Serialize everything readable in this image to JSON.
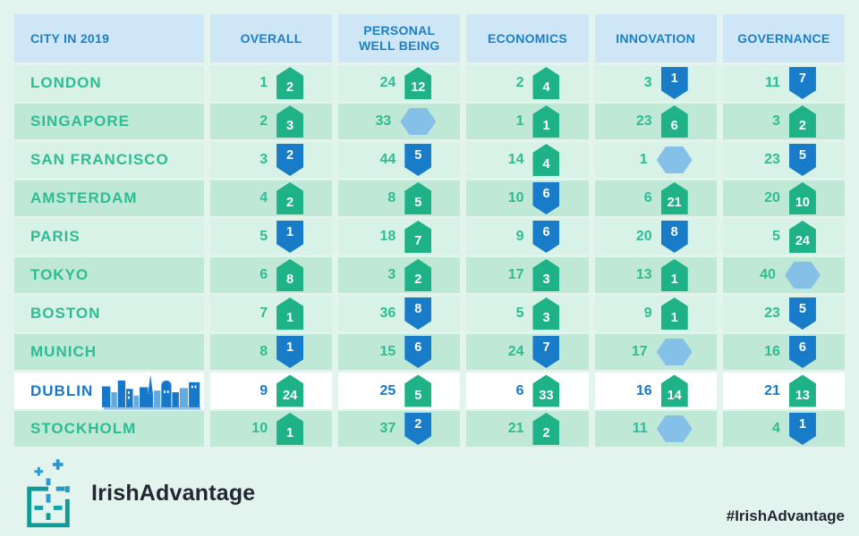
{
  "chart_data": {
    "type": "table",
    "title": "City in 2019 rankings with year-over-year rank change badges",
    "columns": [
      {
        "id": "city",
        "label": "CITY IN 2019"
      },
      {
        "id": "overall",
        "label": "OVERALL"
      },
      {
        "id": "personal-well-being",
        "label": "PERSONAL WELL BEING"
      },
      {
        "id": "economics",
        "label": "ECONOMICS"
      },
      {
        "id": "innovation",
        "label": "INNOVATION"
      },
      {
        "id": "governance",
        "label": "GOVERNANCE"
      }
    ],
    "change_legend": {
      "up": "rank improved (green upward pentagon badge)",
      "down": "rank dropped (blue downward pentagon badge)",
      "none": "no change (light blue hexagon badge, no number)"
    },
    "rows": [
      {
        "city": "LONDON",
        "highlight": false,
        "cells": [
          {
            "rank": 1,
            "change": 2,
            "dir": "up"
          },
          {
            "rank": 24,
            "change": 12,
            "dir": "up"
          },
          {
            "rank": 2,
            "change": 4,
            "dir": "up"
          },
          {
            "rank": 3,
            "change": 1,
            "dir": "down"
          },
          {
            "rank": 11,
            "change": 7,
            "dir": "down"
          }
        ]
      },
      {
        "city": "SINGAPORE",
        "highlight": false,
        "cells": [
          {
            "rank": 2,
            "change": 3,
            "dir": "up"
          },
          {
            "rank": 33,
            "change": null,
            "dir": "none"
          },
          {
            "rank": 1,
            "change": 1,
            "dir": "up"
          },
          {
            "rank": 23,
            "change": 6,
            "dir": "up"
          },
          {
            "rank": 3,
            "change": 2,
            "dir": "up"
          }
        ]
      },
      {
        "city": "SAN FRANCISCO",
        "highlight": false,
        "cells": [
          {
            "rank": 3,
            "change": 2,
            "dir": "down"
          },
          {
            "rank": 44,
            "change": 5,
            "dir": "down"
          },
          {
            "rank": 14,
            "change": 4,
            "dir": "up"
          },
          {
            "rank": 1,
            "change": null,
            "dir": "none"
          },
          {
            "rank": 23,
            "change": 5,
            "dir": "down"
          }
        ]
      },
      {
        "city": "AMSTERDAM",
        "highlight": false,
        "cells": [
          {
            "rank": 4,
            "change": 2,
            "dir": "up"
          },
          {
            "rank": 8,
            "change": 5,
            "dir": "up"
          },
          {
            "rank": 10,
            "change": 6,
            "dir": "down"
          },
          {
            "rank": 6,
            "change": 21,
            "dir": "up"
          },
          {
            "rank": 20,
            "change": 10,
            "dir": "up"
          }
        ]
      },
      {
        "city": "PARIS",
        "highlight": false,
        "cells": [
          {
            "rank": 5,
            "change": 1,
            "dir": "down"
          },
          {
            "rank": 18,
            "change": 7,
            "dir": "up"
          },
          {
            "rank": 9,
            "change": 6,
            "dir": "down"
          },
          {
            "rank": 20,
            "change": 8,
            "dir": "down"
          },
          {
            "rank": 5,
            "change": 24,
            "dir": "up"
          }
        ]
      },
      {
        "city": "TOKYO",
        "highlight": false,
        "cells": [
          {
            "rank": 6,
            "change": 8,
            "dir": "up"
          },
          {
            "rank": 3,
            "change": 2,
            "dir": "up"
          },
          {
            "rank": 17,
            "change": 3,
            "dir": "up"
          },
          {
            "rank": 13,
            "change": 1,
            "dir": "up"
          },
          {
            "rank": 40,
            "change": null,
            "dir": "none"
          }
        ]
      },
      {
        "city": "BOSTON",
        "highlight": false,
        "cells": [
          {
            "rank": 7,
            "change": 1,
            "dir": "up"
          },
          {
            "rank": 36,
            "change": 8,
            "dir": "down"
          },
          {
            "rank": 5,
            "change": 3,
            "dir": "up"
          },
          {
            "rank": 9,
            "change": 1,
            "dir": "up"
          },
          {
            "rank": 23,
            "change": 5,
            "dir": "down"
          }
        ]
      },
      {
        "city": "MUNICH",
        "highlight": false,
        "cells": [
          {
            "rank": 8,
            "change": 1,
            "dir": "down"
          },
          {
            "rank": 15,
            "change": 6,
            "dir": "down"
          },
          {
            "rank": 24,
            "change": 7,
            "dir": "down"
          },
          {
            "rank": 17,
            "change": null,
            "dir": "none"
          },
          {
            "rank": 16,
            "change": 6,
            "dir": "down"
          }
        ]
      },
      {
        "city": "DUBLIN",
        "highlight": true,
        "cells": [
          {
            "rank": 9,
            "change": 24,
            "dir": "up"
          },
          {
            "rank": 25,
            "change": 5,
            "dir": "up"
          },
          {
            "rank": 6,
            "change": 33,
            "dir": "up"
          },
          {
            "rank": 16,
            "change": 14,
            "dir": "up"
          },
          {
            "rank": 21,
            "change": 13,
            "dir": "up"
          }
        ]
      },
      {
        "city": "STOCKHOLM",
        "highlight": false,
        "cells": [
          {
            "rank": 10,
            "change": 1,
            "dir": "up"
          },
          {
            "rank": 37,
            "change": 2,
            "dir": "down"
          },
          {
            "rank": 21,
            "change": 2,
            "dir": "up"
          },
          {
            "rank": 11,
            "change": null,
            "dir": "none"
          },
          {
            "rank": 4,
            "change": 1,
            "dir": "down"
          }
        ]
      }
    ]
  },
  "icons": {
    "up_badge": "pentagon-up-green",
    "down_badge": "pentagon-down-blue",
    "no_change_badge": "hexagon-light-blue",
    "dublin_skyline": "blue-city-skyline-illustration",
    "logo_mark": "dashed-square-with-sparkles"
  },
  "colors": {
    "page_bg": "#e3f3ed",
    "header_bg": "#cfe6f7",
    "header_text": "#1b80c5",
    "row_light": "#d8f2e7",
    "row_dark": "#c0e8d7",
    "highlight_row_bg": "#ffffff",
    "teal_text": "#2dbc93",
    "dublin_blue_text": "#1878c8",
    "badge_up": "#1fb287",
    "badge_down": "#187cc9",
    "badge_none": "#84c0e8"
  },
  "footer": {
    "logo_text": "IrishAdvantage",
    "hashtag": "#IrishAdvantage"
  }
}
